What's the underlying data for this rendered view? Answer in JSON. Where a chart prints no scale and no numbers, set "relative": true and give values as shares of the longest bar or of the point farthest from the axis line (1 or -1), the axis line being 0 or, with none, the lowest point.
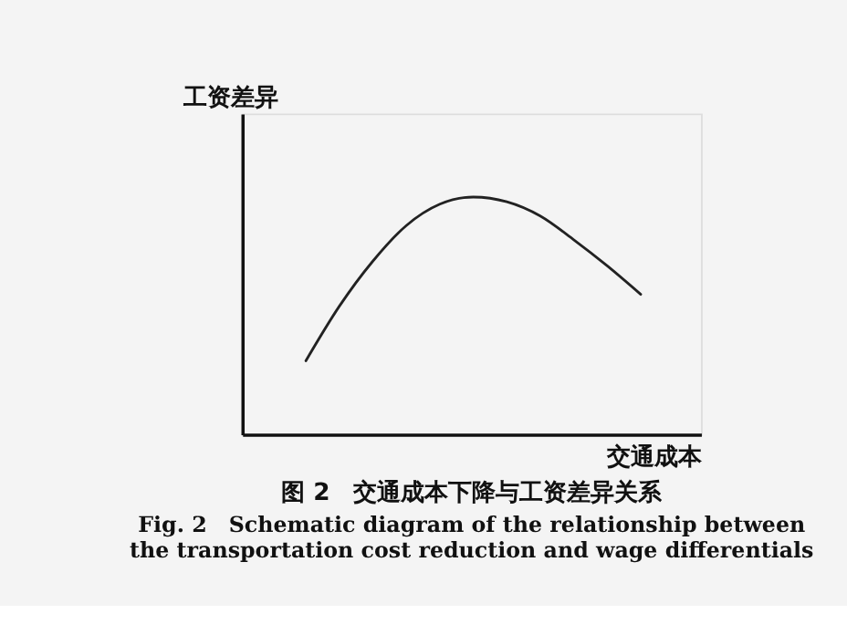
{
  "chart_data": {
    "type": "line",
    "relative": true,
    "title": "图 2　交通成本下降与工资差异关系",
    "annotations": [
      "Fig. 2　Schematic diagram of the relationship between",
      "the transportation cost reduction and wage differentials"
    ],
    "xlabel": "交通成本",
    "ylabel": "工资差异",
    "categories": [
      null,
      null,
      null,
      null,
      null,
      null,
      null,
      null,
      null,
      null,
      null
    ],
    "series": [
      {
        "color": "#222222",
        "values": [
          0.31,
          0.54,
          0.73,
          0.88,
          0.97,
          1,
          0.98,
          0.92,
          0.82,
          0.71,
          0.59
        ]
      }
    ],
    "grid": false,
    "marker": "none",
    "line_style": "solid"
  }
}
